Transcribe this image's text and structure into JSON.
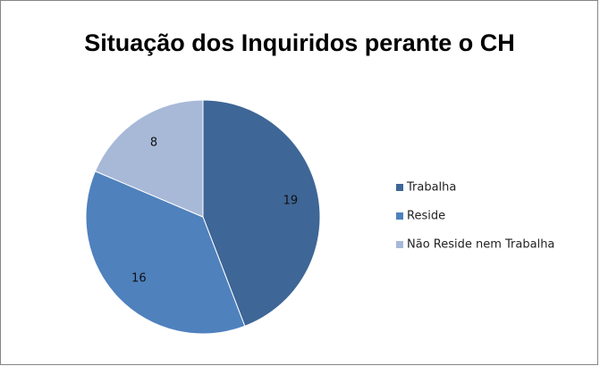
{
  "chart_data": {
    "type": "pie",
    "title": "Situação dos Inquiridos perante o CH",
    "categories": [
      "Trabalha",
      "Reside",
      "Não Reside nem Trabalha"
    ],
    "values": [
      19,
      16,
      8
    ],
    "colors": [
      "#3e6696",
      "#4f81bd",
      "#a8b9d8"
    ],
    "legend": "right"
  }
}
